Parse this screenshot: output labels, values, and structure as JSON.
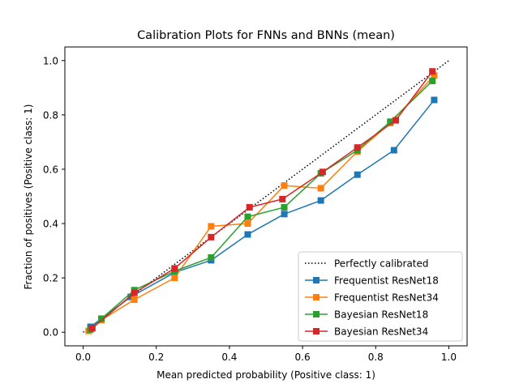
{
  "chart_data": {
    "type": "line",
    "title": "Calibration Plots for FNNs and BNNs (mean)",
    "xlabel": "Mean predicted probability (Positive class: 1)",
    "ylabel": "Fraction of positives (Positive class: 1)",
    "xlim": [
      -0.05,
      1.05
    ],
    "ylim": [
      -0.05,
      1.05
    ],
    "xticks": [
      0.0,
      0.2,
      0.4,
      0.6,
      0.8,
      1.0
    ],
    "yticks": [
      0.0,
      0.2,
      0.4,
      0.6,
      0.8,
      1.0
    ],
    "xtick_labels": [
      "0.0",
      "0.2",
      "0.4",
      "0.6",
      "0.8",
      "1.0"
    ],
    "ytick_labels": [
      "0.0",
      "0.2",
      "0.4",
      "0.6",
      "0.8",
      "1.0"
    ],
    "grid": false,
    "legend_position": "lower-right",
    "reference": {
      "name": "Perfectly calibrated",
      "x": [
        0,
        1
      ],
      "y": [
        0,
        1
      ],
      "color": "#000000",
      "style": "dotted"
    },
    "series": [
      {
        "name": "Frequentist ResNet18",
        "color": "#1f77b4",
        "x": [
          0.02,
          0.05,
          0.13,
          0.25,
          0.35,
          0.45,
          0.55,
          0.65,
          0.75,
          0.85,
          0.96
        ],
        "y": [
          0.02,
          0.05,
          0.13,
          0.22,
          0.265,
          0.36,
          0.435,
          0.485,
          0.58,
          0.67,
          0.855
        ]
      },
      {
        "name": "Frequentist ResNet34",
        "color": "#ff7f0e",
        "x": [
          0.015,
          0.05,
          0.14,
          0.25,
          0.35,
          0.45,
          0.55,
          0.65,
          0.75,
          0.84,
          0.96
        ],
        "y": [
          0.005,
          0.045,
          0.12,
          0.2,
          0.39,
          0.4,
          0.54,
          0.53,
          0.665,
          0.77,
          0.945
        ]
      },
      {
        "name": "Bayesian ResNet18",
        "color": "#2ca02c",
        "x": [
          0.02,
          0.05,
          0.14,
          0.25,
          0.35,
          0.45,
          0.55,
          0.65,
          0.75,
          0.84,
          0.955
        ],
        "y": [
          0.01,
          0.05,
          0.155,
          0.225,
          0.275,
          0.425,
          0.46,
          0.585,
          0.67,
          0.775,
          0.925
        ]
      },
      {
        "name": "Bayesian ResNet34",
        "color": "#d62728",
        "x": [
          0.025,
          0.14,
          0.25,
          0.35,
          0.455,
          0.545,
          0.655,
          0.75,
          0.855,
          0.955
        ],
        "y": [
          0.015,
          0.145,
          0.235,
          0.35,
          0.46,
          0.49,
          0.59,
          0.68,
          0.78,
          0.96
        ]
      }
    ]
  }
}
